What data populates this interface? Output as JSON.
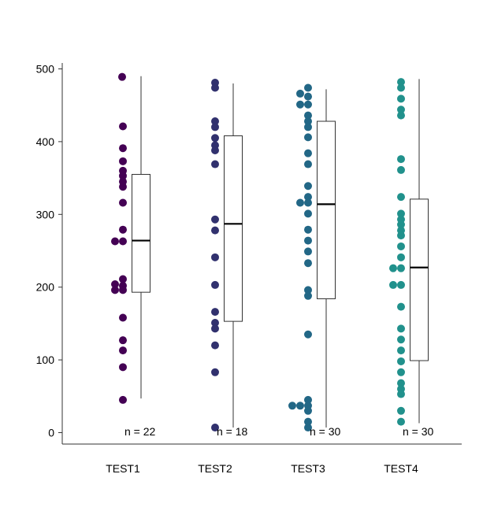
{
  "chart_data": {
    "type": "box",
    "title": "",
    "xlabel": "",
    "ylabel": "",
    "ylim": [
      -15,
      510
    ],
    "yticks": [
      0,
      100,
      200,
      300,
      400,
      500
    ],
    "grid": false,
    "legend": "none",
    "categories": [
      "TEST1",
      "TEST2",
      "TEST3",
      "TEST4"
    ],
    "series": [
      {
        "category": "TEST1",
        "color": "#440154",
        "n_label": "n = 22",
        "box": {
          "min": 47,
          "q1": 193,
          "median": 264,
          "q3": 355,
          "max": 490
        },
        "points": [
          {
            "x": -0.1,
            "y": 489
          },
          {
            "x": 0,
            "y": 421
          },
          {
            "x": 0,
            "y": 391
          },
          {
            "x": 0,
            "y": 373
          },
          {
            "x": 0,
            "y": 360
          },
          {
            "x": 0,
            "y": 353
          },
          {
            "x": 0,
            "y": 345
          },
          {
            "x": 0,
            "y": 338
          },
          {
            "x": 0,
            "y": 316
          },
          {
            "x": 0,
            "y": 279
          },
          {
            "x": -1,
            "y": 263
          },
          {
            "x": 0,
            "y": 263
          },
          {
            "x": 0,
            "y": 211
          },
          {
            "x": -1,
            "y": 204
          },
          {
            "x": 0,
            "y": 202
          },
          {
            "x": -1,
            "y": 196
          },
          {
            "x": 0,
            "y": 196
          },
          {
            "x": 0,
            "y": 158
          },
          {
            "x": 0,
            "y": 127
          },
          {
            "x": 0,
            "y": 113
          },
          {
            "x": 0,
            "y": 90
          },
          {
            "x": 0,
            "y": 45
          }
        ]
      },
      {
        "category": "TEST2",
        "color": "#31316e",
        "n_label": "n = 18",
        "box": {
          "min": 7,
          "q1": 153,
          "median": 287,
          "q3": 408,
          "max": 480
        },
        "points": [
          {
            "x": 0,
            "y": 481
          },
          {
            "x": 0,
            "y": 474
          },
          {
            "x": 0,
            "y": 428
          },
          {
            "x": 0,
            "y": 420
          },
          {
            "x": 0,
            "y": 405
          },
          {
            "x": 0,
            "y": 395
          },
          {
            "x": 0,
            "y": 388
          },
          {
            "x": 0,
            "y": 369
          },
          {
            "x": 0,
            "y": 293
          },
          {
            "x": 0,
            "y": 278
          },
          {
            "x": 0,
            "y": 241
          },
          {
            "x": 0,
            "y": 203
          },
          {
            "x": 0,
            "y": 166
          },
          {
            "x": 0,
            "y": 151
          },
          {
            "x": 0,
            "y": 143
          },
          {
            "x": 0,
            "y": 120
          },
          {
            "x": 0,
            "y": 83
          },
          {
            "x": 0,
            "y": 7
          }
        ]
      },
      {
        "category": "TEST3",
        "color": "#226786",
        "n_label": "n = 30",
        "box": {
          "min": 7,
          "q1": 184,
          "median": 314,
          "q3": 428,
          "max": 472
        },
        "points": [
          {
            "x": 0,
            "y": 474
          },
          {
            "x": -1,
            "y": 466
          },
          {
            "x": 0,
            "y": 462
          },
          {
            "x": -1,
            "y": 451
          },
          {
            "x": 0,
            "y": 451
          },
          {
            "x": 0,
            "y": 436
          },
          {
            "x": 0,
            "y": 428
          },
          {
            "x": 0,
            "y": 420
          },
          {
            "x": 0,
            "y": 406
          },
          {
            "x": 0,
            "y": 384
          },
          {
            "x": 0,
            "y": 369
          },
          {
            "x": 0,
            "y": 339
          },
          {
            "x": 0,
            "y": 324
          },
          {
            "x": -1,
            "y": 316
          },
          {
            "x": 0,
            "y": 316
          },
          {
            "x": 0,
            "y": 301
          },
          {
            "x": 0,
            "y": 279
          },
          {
            "x": 0,
            "y": 264
          },
          {
            "x": 0,
            "y": 249
          },
          {
            "x": 0,
            "y": 233
          },
          {
            "x": 0,
            "y": 196
          },
          {
            "x": 0,
            "y": 188
          },
          {
            "x": 0,
            "y": 135
          },
          {
            "x": 0,
            "y": 45
          },
          {
            "x": -2,
            "y": 37
          },
          {
            "x": -1,
            "y": 37
          },
          {
            "x": 0,
            "y": 37
          },
          {
            "x": 0,
            "y": 30
          },
          {
            "x": 0,
            "y": 7
          },
          {
            "x": 0,
            "y": 15
          }
        ]
      },
      {
        "category": "TEST4",
        "color": "#21918c",
        "n_label": "n = 30",
        "box": {
          "min": 13,
          "q1": 99,
          "median": 227,
          "q3": 321,
          "max": 486
        },
        "points": [
          {
            "x": 0,
            "y": 482
          },
          {
            "x": 0,
            "y": 474
          },
          {
            "x": 0,
            "y": 459
          },
          {
            "x": 0,
            "y": 444
          },
          {
            "x": 0,
            "y": 436
          },
          {
            "x": 0,
            "y": 376
          },
          {
            "x": 0,
            "y": 361
          },
          {
            "x": 0,
            "y": 324
          },
          {
            "x": 0,
            "y": 301
          },
          {
            "x": 0,
            "y": 293
          },
          {
            "x": 0,
            "y": 286
          },
          {
            "x": 0,
            "y": 278
          },
          {
            "x": 0,
            "y": 271
          },
          {
            "x": 0,
            "y": 256
          },
          {
            "x": 0,
            "y": 241
          },
          {
            "x": -1,
            "y": 226
          },
          {
            "x": 0,
            "y": 226
          },
          {
            "x": -1,
            "y": 203
          },
          {
            "x": 0,
            "y": 203
          },
          {
            "x": 0,
            "y": 173
          },
          {
            "x": 0,
            "y": 143
          },
          {
            "x": 0,
            "y": 128
          },
          {
            "x": 0,
            "y": 113
          },
          {
            "x": 0,
            "y": 98
          },
          {
            "x": 0,
            "y": 83
          },
          {
            "x": 0,
            "y": 68
          },
          {
            "x": 0,
            "y": 60
          },
          {
            "x": 0,
            "y": 53
          },
          {
            "x": 0,
            "y": 30
          },
          {
            "x": 0,
            "y": 15
          }
        ]
      }
    ]
  }
}
